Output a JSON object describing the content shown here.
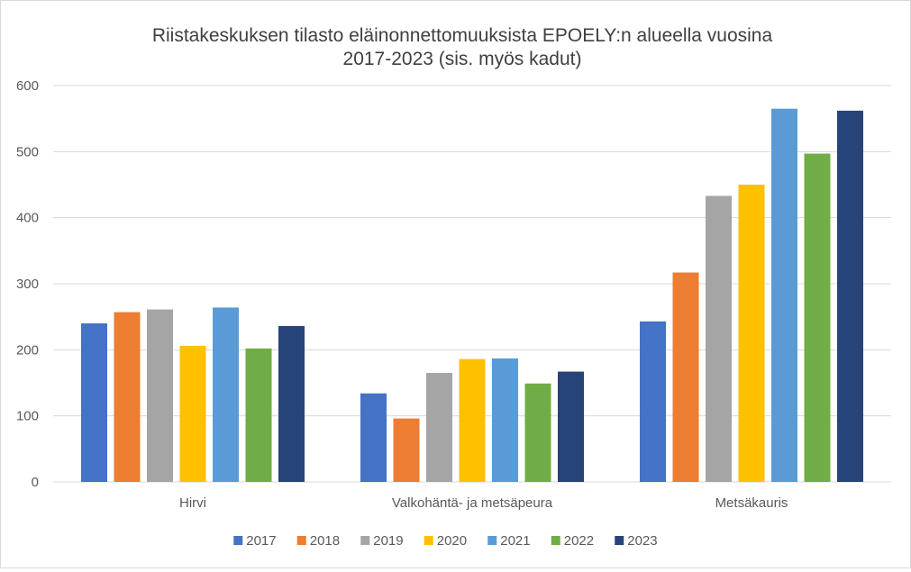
{
  "chart_data": {
    "type": "bar",
    "title": [
      "Riistakeskuksen tilasto eläinonnettomuuksista  EPOELY:n alueella vuosina",
      "2017-2023 (sis. myös kadut)"
    ],
    "xlabel": "",
    "ylabel": "",
    "ylim": [
      0,
      600
    ],
    "yticks": [
      0,
      100,
      200,
      300,
      400,
      500,
      600
    ],
    "grid": true,
    "legend_position": "bottom",
    "categories": [
      "Hirvi",
      "Valkohäntä- ja metsäpeura",
      "Metsäkauris"
    ],
    "series": [
      {
        "name": "2017",
        "color": "#4472C4",
        "values": [
          240,
          134,
          243
        ]
      },
      {
        "name": "2018",
        "color": "#ED7D31",
        "values": [
          257,
          96,
          317
        ]
      },
      {
        "name": "2019",
        "color": "#A5A5A5",
        "values": [
          261,
          165,
          433
        ]
      },
      {
        "name": "2020",
        "color": "#FFC000",
        "values": [
          206,
          186,
          450
        ]
      },
      {
        "name": "2021",
        "color": "#5B9BD5",
        "values": [
          264,
          187,
          565
        ]
      },
      {
        "name": "2022",
        "color": "#70AD47",
        "values": [
          202,
          149,
          497
        ]
      },
      {
        "name": "2023",
        "color": "#264478",
        "values": [
          236,
          167,
          562
        ]
      }
    ]
  }
}
